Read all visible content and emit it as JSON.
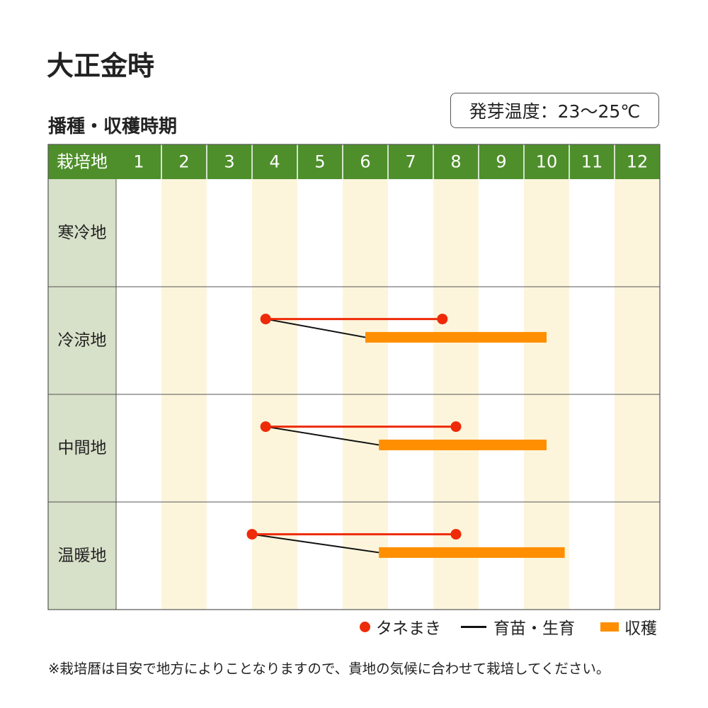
{
  "title": "大正金時",
  "subtitle": "播種・収穫時期",
  "germination": "発芽温度：23～25℃",
  "legend": {
    "sowing": "タネまき",
    "raising": "育苗・生育",
    "harvest": "収穫"
  },
  "note": "※栽培暦は目安で地方によりことなりますので、貴地の気候に合わせて栽培してください。",
  "colors": {
    "header": "#4e8f2b",
    "region": "#d7e0c8",
    "stripe": "#fcf5dc",
    "sowing": "#ee2a08",
    "harvest": "#ff8f00",
    "growth": "#111111"
  },
  "chart_data": {
    "type": "table",
    "corner_label": "栽培地",
    "months": [
      "1",
      "2",
      "3",
      "4",
      "5",
      "6",
      "7",
      "8",
      "9",
      "10",
      "11",
      "12"
    ],
    "regions": [
      {
        "name": "寒冷地",
        "sowing": null,
        "harvest": null
      },
      {
        "name": "冷涼地",
        "sowing": [
          4.3,
          8.2
        ],
        "harvest": [
          6.5,
          10.5
        ]
      },
      {
        "name": "中間地",
        "sowing": [
          4.3,
          8.5
        ],
        "harvest": [
          6.8,
          10.5
        ]
      },
      {
        "name": "温暖地",
        "sowing": [
          4.0,
          8.5
        ],
        "harvest": [
          6.8,
          10.9
        ]
      }
    ]
  }
}
